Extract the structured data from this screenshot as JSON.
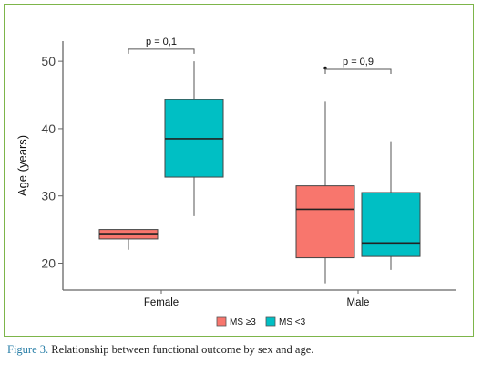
{
  "chart_data": {
    "type": "boxplot",
    "ylabel": "Age (years)",
    "xlabel": "",
    "ylim": [
      16,
      53
    ],
    "yticks": [
      20,
      30,
      40,
      50
    ],
    "grid": false,
    "legend_position": "bottom",
    "categories": [
      "Female",
      "Male"
    ],
    "series": [
      {
        "name": "MS ≥3",
        "color": "#f8766d",
        "boxes": [
          {
            "category": "Female",
            "whisker_low": 22,
            "q1": 23.6,
            "median": 24.4,
            "q3": 25,
            "whisker_high": 25,
            "outliers": []
          },
          {
            "category": "Male",
            "whisker_low": 17,
            "q1": 20.8,
            "median": 28,
            "q3": 31.5,
            "whisker_high": 44,
            "outliers": [
              49
            ]
          }
        ]
      },
      {
        "name": "MS <3",
        "color": "#00bfc4",
        "boxes": [
          {
            "category": "Female",
            "whisker_low": 27,
            "q1": 32.8,
            "median": 38.5,
            "q3": 44.3,
            "whisker_high": 50,
            "outliers": []
          },
          {
            "category": "Male",
            "whisker_low": 19,
            "q1": 21,
            "median": 23,
            "q3": 30.5,
            "whisker_high": 38,
            "outliers": []
          }
        ]
      }
    ],
    "annotations": [
      {
        "text": "p = 0,1",
        "category": "Female",
        "bracket_y": 51.8
      },
      {
        "text": "p = 0,9",
        "category": "Male",
        "bracket_y": 48.8
      }
    ]
  },
  "caption": {
    "label": "Figure 3.",
    "text": " Relationship between functional outcome by sex and age."
  }
}
